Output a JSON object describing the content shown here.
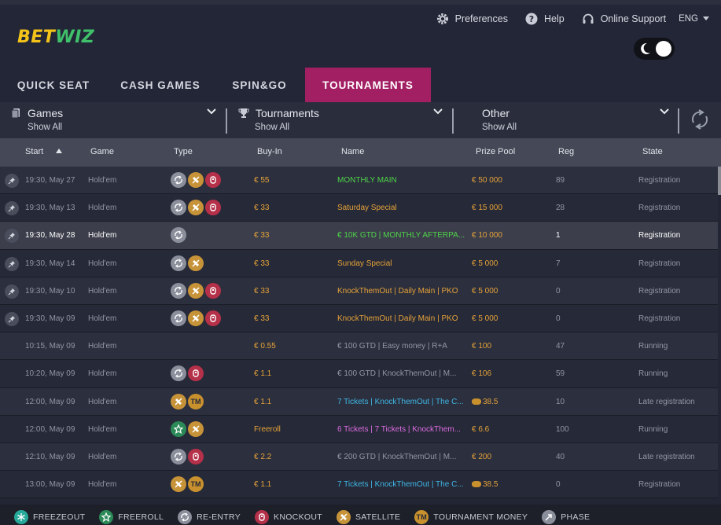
{
  "brand": {
    "part1": "BET",
    "part2": "WIZ",
    "color_gold": "#f3c31a",
    "color_green": "#3fc06a"
  },
  "topnav": {
    "preferences": "Preferences",
    "help": "Help",
    "support": "Online Support",
    "language": "ENG"
  },
  "tabs": [
    {
      "label": "QUICK SEAT",
      "active": false
    },
    {
      "label": "CASH GAMES",
      "active": false
    },
    {
      "label": "SPIN&GO",
      "active": false
    },
    {
      "label": "TOURNAMENTS",
      "active": true
    }
  ],
  "filters": [
    {
      "title": "Games",
      "value": "Show All",
      "icon": "cards-icon"
    },
    {
      "title": "Tournaments",
      "value": "Show All",
      "icon": "trophy-icon"
    },
    {
      "title": "Other",
      "value": "Show All",
      "icon": ""
    }
  ],
  "columns": [
    "Start",
    "Game",
    "Type",
    "Buy-In",
    "Name",
    "Prize Pool",
    "Reg",
    "State"
  ],
  "rows": [
    {
      "pinned": true,
      "start": "19:30, May 27",
      "game": "Hold'em",
      "types": [
        "reentry",
        "satellite",
        "knockout"
      ],
      "buyin": "€ 55",
      "name": "MONTHLY MAIN",
      "name_color": "green",
      "prize": "€ 50 000",
      "prize_color": "gold",
      "reg": "89",
      "state": "Registration",
      "highlight": false
    },
    {
      "pinned": true,
      "start": "19:30, May 13",
      "game": "Hold'em",
      "types": [
        "reentry",
        "satellite",
        "knockout"
      ],
      "buyin": "€ 33",
      "name": "Saturday Special",
      "name_color": "gold",
      "prize": "€ 15 000",
      "prize_color": "gold",
      "reg": "28",
      "state": "Registration",
      "highlight": false
    },
    {
      "pinned": true,
      "start": "19:30, May 28",
      "game": "Hold'em",
      "types": [
        "reentry"
      ],
      "buyin": "€ 33",
      "name": "€ 10K  GTD  |  MONTHLY AFTERPA...",
      "name_color": "green",
      "prize": "€ 10 000",
      "prize_color": "gold",
      "reg": "1",
      "state": "Registration",
      "highlight": true
    },
    {
      "pinned": true,
      "start": "19:30, May 14",
      "game": "Hold'em",
      "types": [
        "reentry",
        "satellite"
      ],
      "buyin": "€ 33",
      "name": "Sunday Special",
      "name_color": "gold",
      "prize": "€ 5 000",
      "prize_color": "gold",
      "reg": "7",
      "state": "Registration",
      "highlight": false
    },
    {
      "pinned": true,
      "start": "19:30, May 10",
      "game": "Hold'em",
      "types": [
        "reentry",
        "satellite",
        "knockout"
      ],
      "buyin": "€ 33",
      "name": "KnockThemOut | Daily Main | PKO",
      "name_color": "gold",
      "prize": "€ 5 000",
      "prize_color": "gold",
      "reg": "0",
      "state": "Registration",
      "highlight": false
    },
    {
      "pinned": true,
      "start": "19:30, May 09",
      "game": "Hold'em",
      "types": [
        "reentry",
        "satellite",
        "knockout"
      ],
      "buyin": "€ 33",
      "name": "KnockThemOut | Daily Main | PKO",
      "name_color": "gold",
      "prize": "€ 5 000",
      "prize_color": "gold",
      "reg": "0",
      "state": "Registration",
      "highlight": false
    },
    {
      "pinned": false,
      "start": "10:15, May 09",
      "game": "Hold'em",
      "types": [],
      "buyin": "€ 0.55",
      "name": "€ 100  GTD  | Easy money | R+A",
      "name_color": "grey",
      "prize": "€ 100",
      "prize_color": "gold",
      "reg": "47",
      "state": "Running",
      "highlight": false
    },
    {
      "pinned": false,
      "start": "10:20, May 09",
      "game": "Hold'em",
      "types": [
        "reentry",
        "knockout"
      ],
      "buyin": "€ 1.1",
      "name": "€ 100  GTD  | KnockThemOut | M...",
      "name_color": "grey",
      "prize": "€ 106",
      "prize_color": "gold",
      "reg": "59",
      "state": "Running",
      "highlight": false
    },
    {
      "pinned": false,
      "start": "12:00, May 09",
      "game": "Hold'em",
      "types": [
        "satellite",
        "tm"
      ],
      "buyin": "€ 1.1",
      "name": "7 Tickets | KnockThemOut | The C...",
      "name_color": "cyan",
      "prize": "38.5",
      "prize_color": "gold",
      "prize_coin": true,
      "reg": "10",
      "state": "Late registration",
      "highlight": false
    },
    {
      "pinned": false,
      "start": "12:00, May 09",
      "game": "Hold'em",
      "types": [
        "freeroll",
        "satellite"
      ],
      "buyin": "Freeroll",
      "name": "6 Tickets | 7 Tickets | KnockThem...",
      "name_color": "pink",
      "prize": "€ 6.6",
      "prize_color": "gold",
      "reg": "100",
      "state": "Running",
      "highlight": false
    },
    {
      "pinned": false,
      "start": "12:10, May 09",
      "game": "Hold'em",
      "types": [
        "reentry",
        "knockout"
      ],
      "buyin": "€ 2.2",
      "name": "€ 200  GTD  | KnockThemOut | M...",
      "name_color": "grey",
      "prize": "€ 200",
      "prize_color": "gold",
      "reg": "40",
      "state": "Late registration",
      "highlight": false
    },
    {
      "pinned": false,
      "start": "13:00, May 09",
      "game": "Hold'em",
      "types": [
        "satellite",
        "tm"
      ],
      "buyin": "€ 1.1",
      "name": "7 Tickets | KnockThemOut | The C...",
      "name_color": "cyan",
      "prize": "38.5",
      "prize_color": "gold",
      "prize_coin": true,
      "reg": "0",
      "state": "Registration",
      "highlight": false
    }
  ],
  "legend": [
    {
      "label": "FREEZEOUT",
      "icon": "freezeout"
    },
    {
      "label": "FREEROLL",
      "icon": "freeroll"
    },
    {
      "label": "RE-ENTRY",
      "icon": "reentry"
    },
    {
      "label": "KNOCKOUT",
      "icon": "knockout"
    },
    {
      "label": "SATELLITE",
      "icon": "satellite"
    },
    {
      "label": "TOURNAMENT MONEY",
      "icon": "tm"
    },
    {
      "label": "PHASE",
      "icon": "phase"
    }
  ],
  "tm_label": "TM",
  "colors": {
    "accent_tab": "#a31f63",
    "header_bg": "#454957"
  }
}
